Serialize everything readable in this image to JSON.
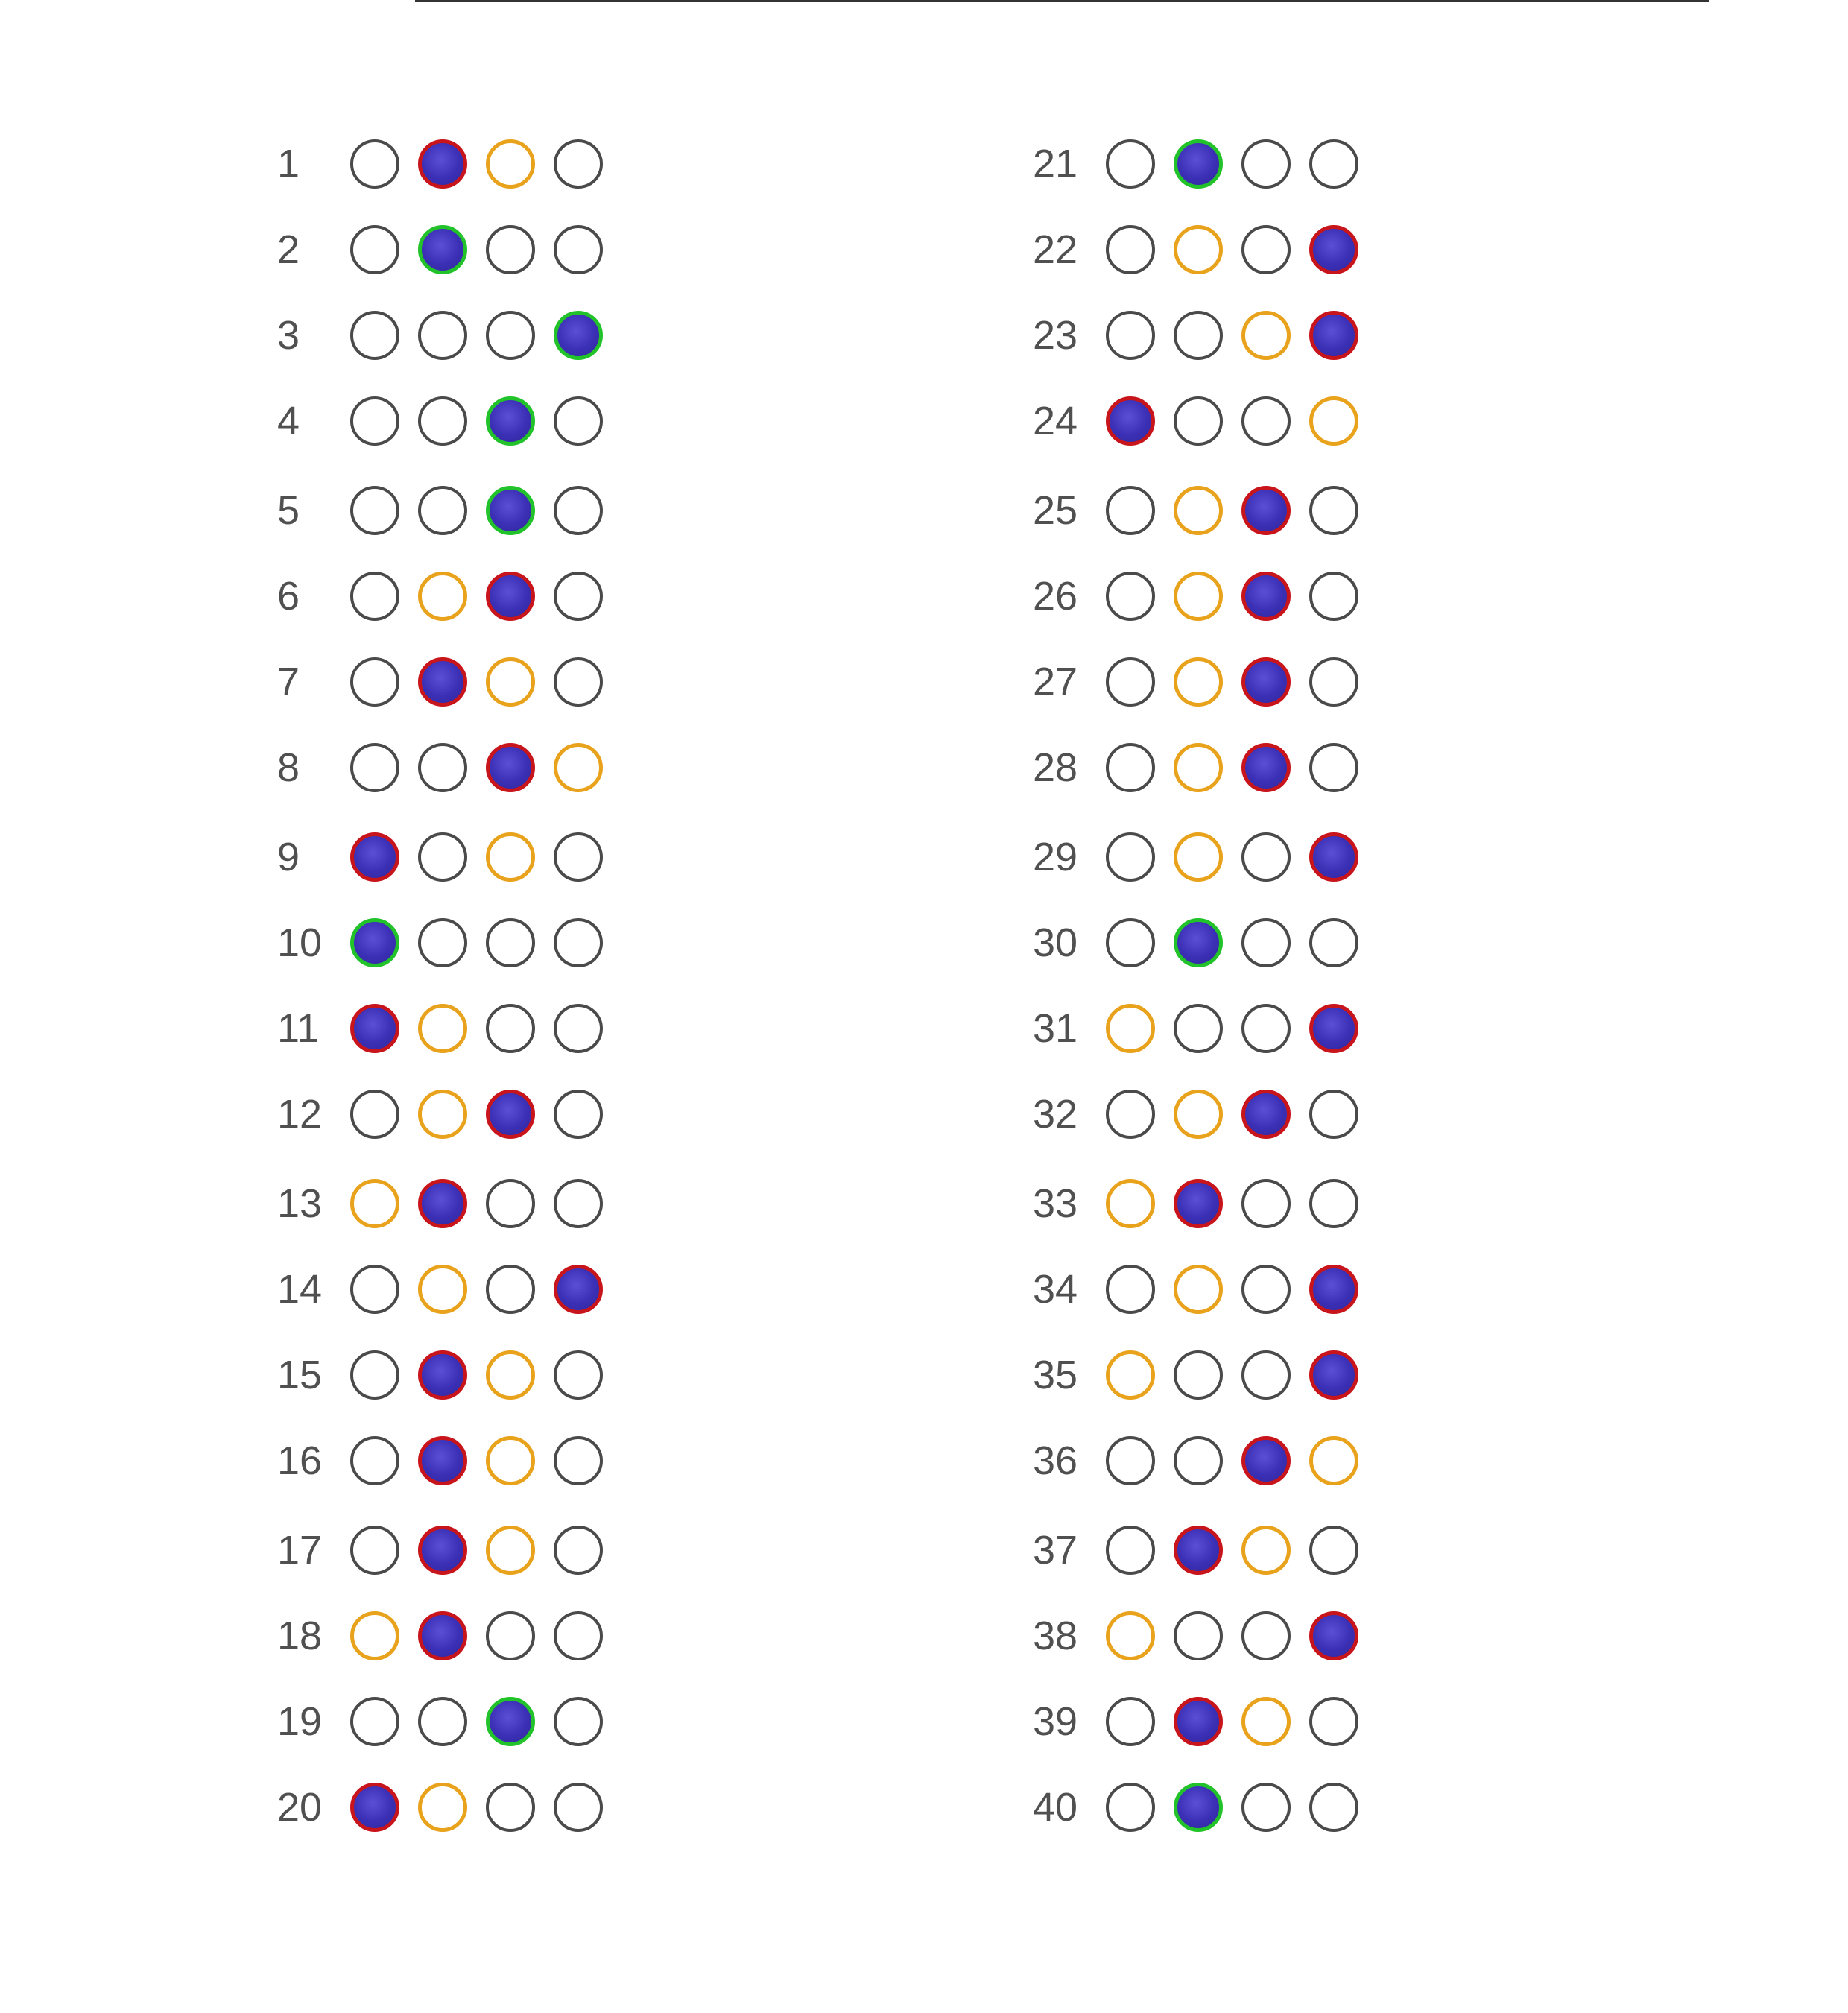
{
  "sheet": {
    "colors": {
      "fill": "#3b30b5",
      "correct_ring": "#22c32a",
      "wrong_ring": "#c8151c",
      "answer_key_ring": "#e8a21c",
      "empty_ring": "#4a4a4a"
    },
    "questions": [
      {
        "number": "1",
        "bubbles": [
          "empty",
          "filled-wrong",
          "key",
          "empty"
        ]
      },
      {
        "number": "2",
        "bubbles": [
          "empty",
          "filled-correct",
          "empty",
          "empty"
        ]
      },
      {
        "number": "3",
        "bubbles": [
          "empty",
          "empty",
          "empty",
          "filled-correct"
        ]
      },
      {
        "number": "4",
        "bubbles": [
          "empty",
          "empty",
          "filled-correct",
          "empty"
        ]
      },
      {
        "number": "5",
        "bubbles": [
          "empty",
          "empty",
          "filled-correct",
          "empty"
        ]
      },
      {
        "number": "6",
        "bubbles": [
          "empty",
          "key",
          "filled-wrong",
          "empty"
        ]
      },
      {
        "number": "7",
        "bubbles": [
          "empty",
          "filled-wrong",
          "key",
          "empty"
        ]
      },
      {
        "number": "8",
        "bubbles": [
          "empty",
          "empty",
          "filled-wrong",
          "key"
        ]
      },
      {
        "number": "9",
        "bubbles": [
          "filled-wrong",
          "empty",
          "key",
          "empty"
        ]
      },
      {
        "number": "10",
        "bubbles": [
          "filled-correct",
          "empty",
          "empty",
          "empty"
        ]
      },
      {
        "number": "11",
        "bubbles": [
          "filled-wrong",
          "key",
          "empty",
          "empty"
        ]
      },
      {
        "number": "12",
        "bubbles": [
          "empty",
          "key",
          "filled-wrong",
          "empty"
        ]
      },
      {
        "number": "13",
        "bubbles": [
          "key",
          "filled-wrong",
          "empty",
          "empty"
        ]
      },
      {
        "number": "14",
        "bubbles": [
          "empty",
          "key",
          "empty",
          "filled-wrong"
        ]
      },
      {
        "number": "15",
        "bubbles": [
          "empty",
          "filled-wrong",
          "key",
          "empty"
        ]
      },
      {
        "number": "16",
        "bubbles": [
          "empty",
          "filled-wrong",
          "key",
          "empty"
        ]
      },
      {
        "number": "17",
        "bubbles": [
          "empty",
          "filled-wrong",
          "key",
          "empty"
        ]
      },
      {
        "number": "18",
        "bubbles": [
          "key",
          "filled-wrong",
          "empty",
          "empty"
        ]
      },
      {
        "number": "19",
        "bubbles": [
          "empty",
          "empty",
          "filled-correct",
          "empty"
        ]
      },
      {
        "number": "20",
        "bubbles": [
          "filled-wrong",
          "key",
          "empty",
          "empty"
        ]
      },
      {
        "number": "21",
        "bubbles": [
          "empty",
          "filled-correct",
          "empty",
          "empty"
        ]
      },
      {
        "number": "22",
        "bubbles": [
          "empty",
          "key",
          "empty",
          "filled-wrong"
        ]
      },
      {
        "number": "23",
        "bubbles": [
          "empty",
          "empty",
          "key",
          "filled-wrong"
        ]
      },
      {
        "number": "24",
        "bubbles": [
          "filled-wrong",
          "empty",
          "empty",
          "key"
        ]
      },
      {
        "number": "25",
        "bubbles": [
          "empty",
          "key",
          "filled-wrong",
          "empty"
        ]
      },
      {
        "number": "26",
        "bubbles": [
          "empty",
          "key",
          "filled-wrong",
          "empty"
        ]
      },
      {
        "number": "27",
        "bubbles": [
          "empty",
          "key",
          "filled-wrong",
          "empty"
        ]
      },
      {
        "number": "28",
        "bubbles": [
          "empty",
          "key",
          "filled-wrong",
          "empty"
        ]
      },
      {
        "number": "29",
        "bubbles": [
          "empty",
          "key",
          "empty",
          "filled-wrong"
        ]
      },
      {
        "number": "30",
        "bubbles": [
          "empty",
          "filled-correct",
          "empty",
          "empty"
        ]
      },
      {
        "number": "31",
        "bubbles": [
          "key",
          "empty",
          "empty",
          "filled-wrong"
        ]
      },
      {
        "number": "32",
        "bubbles": [
          "empty",
          "key",
          "filled-wrong",
          "empty"
        ]
      },
      {
        "number": "33",
        "bubbles": [
          "key",
          "filled-wrong",
          "empty",
          "empty"
        ]
      },
      {
        "number": "34",
        "bubbles": [
          "empty",
          "key",
          "empty",
          "filled-wrong"
        ]
      },
      {
        "number": "35",
        "bubbles": [
          "key",
          "empty",
          "empty",
          "filled-wrong"
        ]
      },
      {
        "number": "36",
        "bubbles": [
          "empty",
          "empty",
          "filled-wrong",
          "key"
        ]
      },
      {
        "number": "37",
        "bubbles": [
          "empty",
          "filled-wrong",
          "key",
          "empty"
        ]
      },
      {
        "number": "38",
        "bubbles": [
          "key",
          "empty",
          "empty",
          "filled-wrong"
        ]
      },
      {
        "number": "39",
        "bubbles": [
          "empty",
          "filled-wrong",
          "key",
          "empty"
        ]
      },
      {
        "number": "40",
        "bubbles": [
          "empty",
          "filled-correct",
          "empty",
          "empty"
        ]
      }
    ]
  }
}
